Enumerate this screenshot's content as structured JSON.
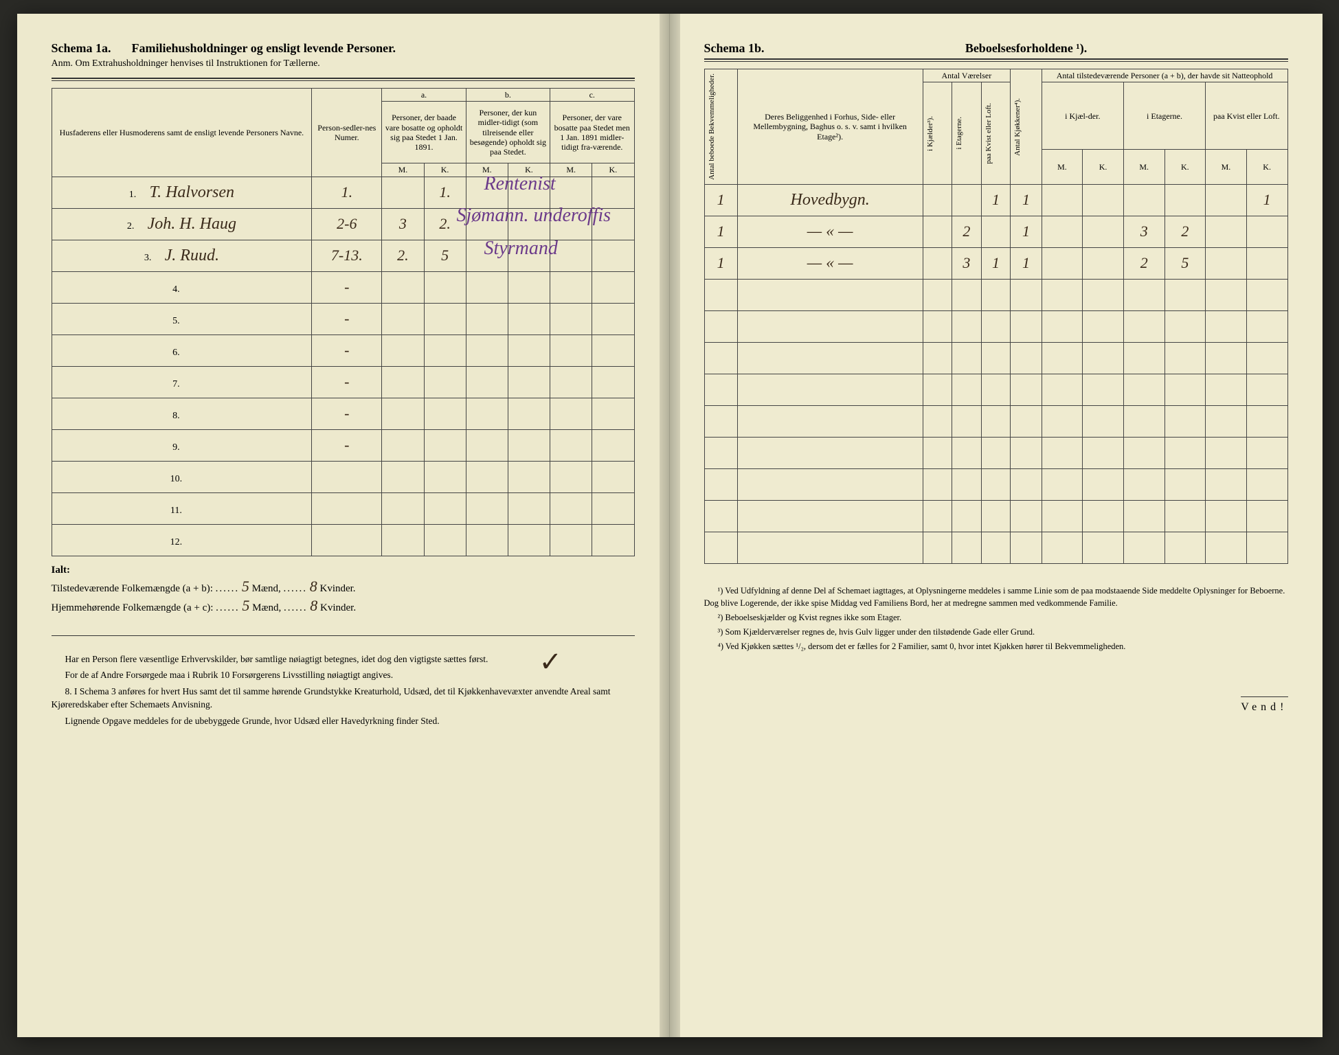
{
  "left": {
    "schema_label": "Schema 1a.",
    "schema_title": "Familiehusholdninger og ensligt levende Personer.",
    "anm": "Anm.  Om Extrahusholdninger henvises til Instruktionen for Tællerne.",
    "headers": {
      "names": "Husfaderens eller Husmoderens samt de ensligt levende Personers Navne.",
      "person_num": "Person-sedler-nes Numer.",
      "a_label": "a.",
      "a_text": "Personer, der baade vare bosatte og opholdt sig paa Stedet 1 Jan. 1891.",
      "b_label": "b.",
      "b_text": "Personer, der kun midler-tidigt (som tilreisende eller besøgende) opholdt sig paa Stedet.",
      "c_label": "c.",
      "c_text": "Personer, der vare bosatte paa Stedet men 1 Jan. 1891 midler-tidigt fra-værende.",
      "m": "M.",
      "k": "K."
    },
    "rows": [
      {
        "n": "1.",
        "name": "T. Halvorsen",
        "num": "1.",
        "a_m": "",
        "a_k": "1.",
        "b_m": "",
        "b_k": "",
        "c_m": "",
        "c_k": "",
        "purple": "Rentenist"
      },
      {
        "n": "2.",
        "name": "Joh. H. Haug",
        "num": "2-6",
        "a_m": "3",
        "a_k": "2.",
        "b_m": "",
        "b_k": "",
        "c_m": "",
        "c_k": "",
        "purple": "Sjømann. underoffis"
      },
      {
        "n": "3.",
        "name": "J. Ruud.",
        "num": "7-13.",
        "a_m": "2.",
        "a_k": "5",
        "b_m": "",
        "b_k": "",
        "c_m": "",
        "c_k": "",
        "purple": "Styrmand"
      },
      {
        "n": "4.",
        "name": "",
        "num": "-",
        "a_m": "",
        "a_k": "",
        "b_m": "",
        "b_k": "",
        "c_m": "",
        "c_k": ""
      },
      {
        "n": "5.",
        "name": "",
        "num": "-",
        "a_m": "",
        "a_k": "",
        "b_m": "",
        "b_k": "",
        "c_m": "",
        "c_k": ""
      },
      {
        "n": "6.",
        "name": "",
        "num": "-",
        "a_m": "",
        "a_k": "",
        "b_m": "",
        "b_k": "",
        "c_m": "",
        "c_k": ""
      },
      {
        "n": "7.",
        "name": "",
        "num": "-",
        "a_m": "",
        "a_k": "",
        "b_m": "",
        "b_k": "",
        "c_m": "",
        "c_k": ""
      },
      {
        "n": "8.",
        "name": "",
        "num": "-",
        "a_m": "",
        "a_k": "",
        "b_m": "",
        "b_k": "",
        "c_m": "",
        "c_k": ""
      },
      {
        "n": "9.",
        "name": "",
        "num": "-",
        "a_m": "",
        "a_k": "",
        "b_m": "",
        "b_k": "",
        "c_m": "",
        "c_k": ""
      },
      {
        "n": "10.",
        "name": "",
        "num": "",
        "a_m": "",
        "a_k": "",
        "b_m": "",
        "b_k": "",
        "c_m": "",
        "c_k": ""
      },
      {
        "n": "11.",
        "name": "",
        "num": "",
        "a_m": "",
        "a_k": "",
        "b_m": "",
        "b_k": "",
        "c_m": "",
        "c_k": ""
      },
      {
        "n": "12.",
        "name": "",
        "num": "",
        "a_m": "",
        "a_k": "",
        "b_m": "",
        "b_k": "",
        "c_m": "",
        "c_k": ""
      }
    ],
    "ialt_label": "Ialt:",
    "tils_label": "Tilstedeværende Folkemængde (a + b): ",
    "tils_m": "5",
    "tils_k": "8",
    "hjem_label": "Hjemmehørende Folkemængde (a + c): ",
    "hjem_m": "5",
    "hjem_k": "8",
    "maend": " Mænd, ",
    "kvinder": " Kvinder.",
    "body": [
      "Har en Person flere væsentlige Erhvervskilder, bør samtlige nøiagtigt betegnes, idet dog den vigtigste sættes først.",
      "For de af Andre Forsørgede maa i Rubrik 10 Forsørgerens Livsstilling nøiagtigt angives.",
      "8. I Schema 3 anføres for hvert Hus samt det til samme hørende Grundstykke Kreaturhold, Udsæd, det til Kjøkkenhavevæxter anvendte Areal samt Kjøreredskaber efter Schemaets Anvisning.",
      "Lignende Opgave meddeles for de ubebyggede Grunde, hvor Udsæd eller Havedyrkning finder Sted."
    ]
  },
  "right": {
    "schema_label": "Schema 1b.",
    "schema_title": "Beboelsesforholdene ¹).",
    "headers": {
      "antal_bekv": "Antal beboede Bekvemmeligheder.",
      "beliggenhed": "Deres Beliggenhed i Forhus, Side- eller Mellembygning, Baghus o. s. v. samt i hvilken Etage²).",
      "antal_vaer": "Antal Værelser",
      "i_kjaelder": "i Kjælder³).",
      "i_etagerne": "i Etagerne.",
      "paa_kvist": "paa Kvist eller Loft.",
      "antal_kjok": "Antal Kjøkkener⁴).",
      "antal_pers": "Antal tilstedeværende Personer (a + b), der havde sit Natteophold",
      "i_kjael": "i Kjæl-der.",
      "i_etag": "i Etagerne.",
      "paa_kvist2": "paa Kvist eller Loft.",
      "m": "M.",
      "k": "K."
    },
    "rows": [
      {
        "bekv": "1",
        "belig": "Hovedbygn.",
        "kj": "",
        "et": "",
        "kv": "1",
        "kjok": "1",
        "km": "",
        "kk": "",
        "em": "",
        "ek": "",
        "lm": "",
        "lk": "1"
      },
      {
        "bekv": "1",
        "belig": "— « —",
        "kj": "",
        "et": "2",
        "kv": "",
        "kjok": "1",
        "km": "",
        "kk": "",
        "em": "3",
        "ek": "2",
        "lm": "",
        "lk": ""
      },
      {
        "bekv": "1",
        "belig": "— « —",
        "kj": "",
        "et": "3",
        "kv": "1",
        "kjok": "1",
        "km": "",
        "kk": "",
        "em": "2",
        "ek": "5",
        "lm": "",
        "lk": ""
      },
      {
        "bekv": "",
        "belig": "",
        "kj": "",
        "et": "",
        "kv": "",
        "kjok": "",
        "km": "",
        "kk": "",
        "em": "",
        "ek": "",
        "lm": "",
        "lk": ""
      },
      {
        "bekv": "",
        "belig": "",
        "kj": "",
        "et": "",
        "kv": "",
        "kjok": "",
        "km": "",
        "kk": "",
        "em": "",
        "ek": "",
        "lm": "",
        "lk": ""
      },
      {
        "bekv": "",
        "belig": "",
        "kj": "",
        "et": "",
        "kv": "",
        "kjok": "",
        "km": "",
        "kk": "",
        "em": "",
        "ek": "",
        "lm": "",
        "lk": ""
      },
      {
        "bekv": "",
        "belig": "",
        "kj": "",
        "et": "",
        "kv": "",
        "kjok": "",
        "km": "",
        "kk": "",
        "em": "",
        "ek": "",
        "lm": "",
        "lk": ""
      },
      {
        "bekv": "",
        "belig": "",
        "kj": "",
        "et": "",
        "kv": "",
        "kjok": "",
        "km": "",
        "kk": "",
        "em": "",
        "ek": "",
        "lm": "",
        "lk": ""
      },
      {
        "bekv": "",
        "belig": "",
        "kj": "",
        "et": "",
        "kv": "",
        "kjok": "",
        "km": "",
        "kk": "",
        "em": "",
        "ek": "",
        "lm": "",
        "lk": ""
      },
      {
        "bekv": "",
        "belig": "",
        "kj": "",
        "et": "",
        "kv": "",
        "kjok": "",
        "km": "",
        "kk": "",
        "em": "",
        "ek": "",
        "lm": "",
        "lk": ""
      },
      {
        "bekv": "",
        "belig": "",
        "kj": "",
        "et": "",
        "kv": "",
        "kjok": "",
        "km": "",
        "kk": "",
        "em": "",
        "ek": "",
        "lm": "",
        "lk": ""
      },
      {
        "bekv": "",
        "belig": "",
        "kj": "",
        "et": "",
        "kv": "",
        "kjok": "",
        "km": "",
        "kk": "",
        "em": "",
        "ek": "",
        "lm": "",
        "lk": ""
      }
    ],
    "footnotes": [
      "¹) Ved Udfyldning af denne Del af Schemaet iagttages, at Oplysningerne meddeles i samme Linie som de paa modstaaende Side meddelte Oplysninger for Beboerne. Dog blive Logerende, der ikke spise Middag ved Familiens Bord, her at medregne sammen med vedkommende Familie.",
      "²) Beboelseskjælder og Kvist regnes ikke som Etager.",
      "³) Som Kjælderværelser regnes de, hvis Gulv ligger under den tilstødende Gade eller Grund.",
      "⁴) Ved Kjøkken sættes ¹/₂, dersom det er fælles for 2 Familier, samt 0, hvor intet Kjøkken hører til Bekvemmeligheden."
    ],
    "vend": "Vend!"
  },
  "colors": {
    "paper": "#ede9cd",
    "ink": "#2a2a28",
    "hand": "#3a2a1a",
    "purple": "#6b3a8a"
  }
}
